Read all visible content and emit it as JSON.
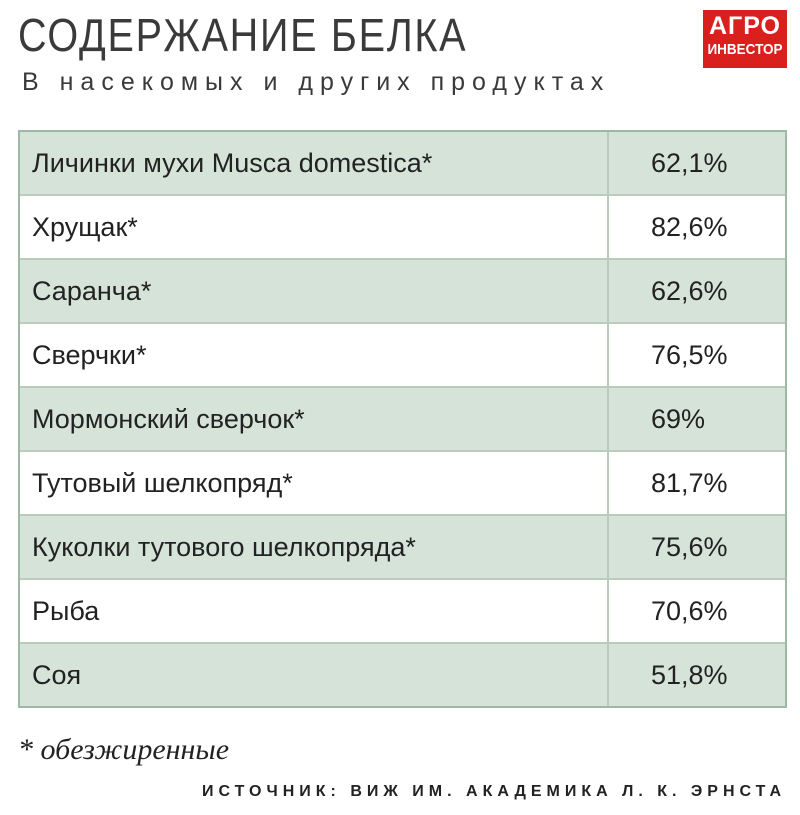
{
  "header": {
    "title": "СОДЕРЖАНИЕ БЕЛКА",
    "subtitle": "В насекомых и других продуктах"
  },
  "logo": {
    "line1": "АГРО",
    "line2": "ИНВЕСТОР"
  },
  "colors": {
    "shaded_row": "#d6e3d9",
    "border": "#b8cbbd",
    "logo_bg": "#d9201d"
  },
  "table": {
    "rows": [
      {
        "name": "Личинки мухи Musca domestica*",
        "value": "62,1%"
      },
      {
        "name": "Хрущак*",
        "value": "82,6%"
      },
      {
        "name": "Саранча*",
        "value": "62,6%"
      },
      {
        "name": "Сверчки*",
        "value": "76,5%"
      },
      {
        "name": "Мормонский сверчок*",
        "value": "69%"
      },
      {
        "name": "Тутовый шелкопряд*",
        "value": "81,7%"
      },
      {
        "name": "Куколки тутового шелкопряда*",
        "value": "75,6%"
      },
      {
        "name": "Рыба",
        "value": "70,6%"
      },
      {
        "name": "Соя",
        "value": "51,8%"
      }
    ]
  },
  "footnote": "* обезжиренные",
  "source": "ИСТОЧНИК: ВИЖ ИМ. АКАДЕМИКА Л. К. ЭРНСТА"
}
